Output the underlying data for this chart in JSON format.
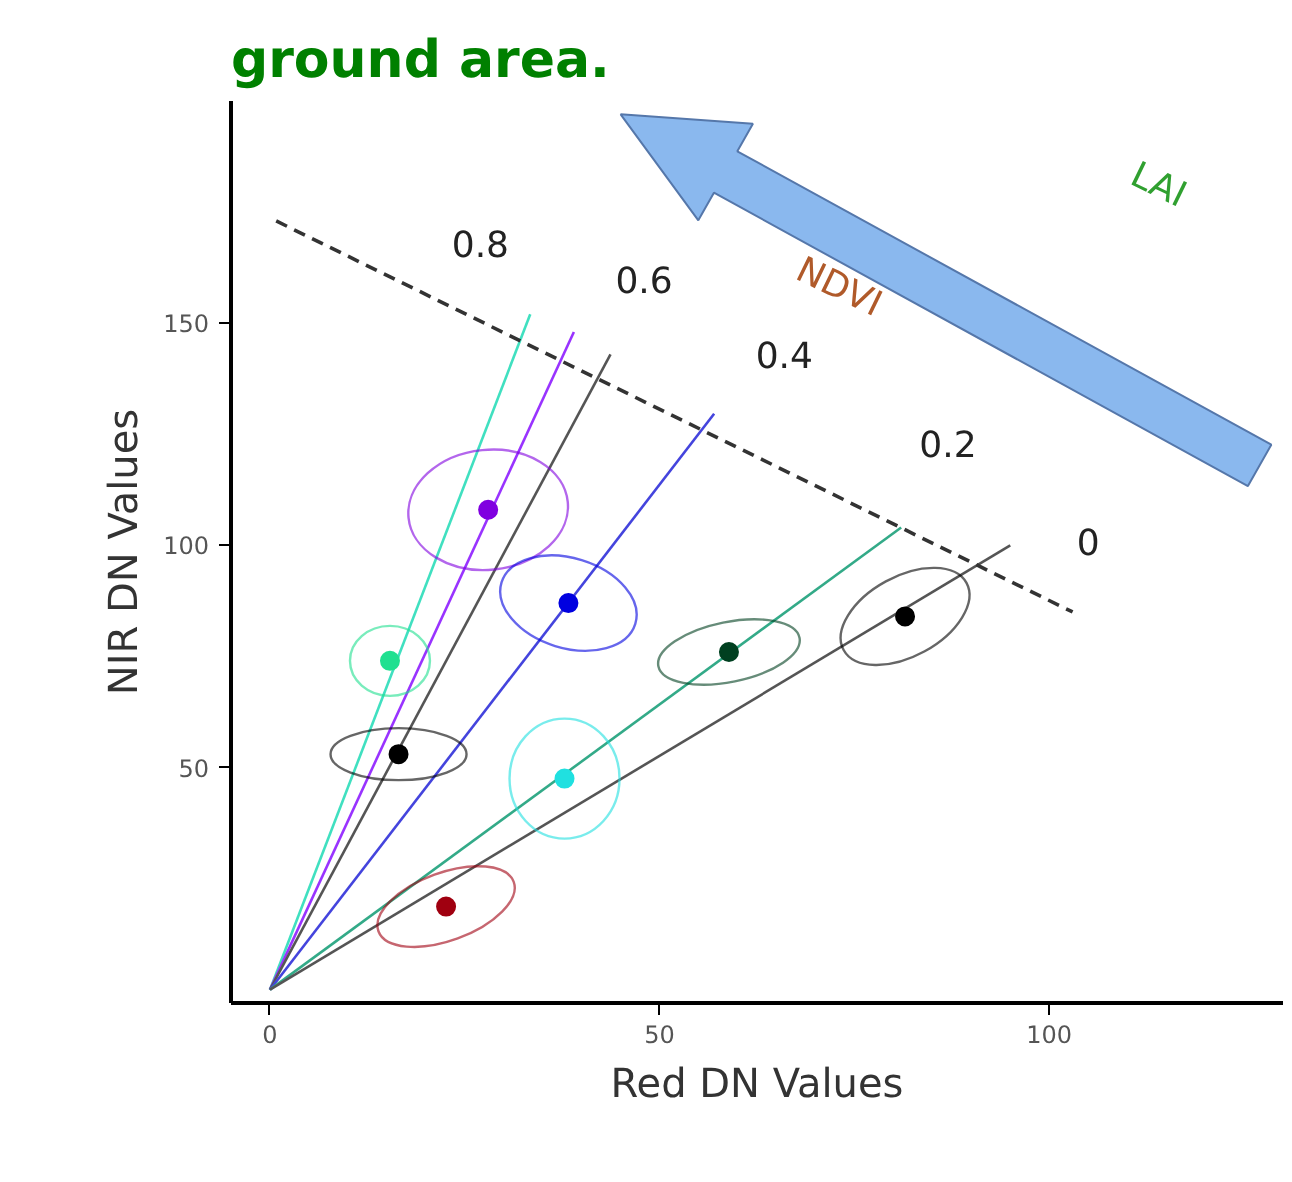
{
  "chart_data": {
    "type": "scatter",
    "title": "ground area.",
    "xlabel": "Red DN Values",
    "ylabel": "NIR DN Values",
    "xlim": [
      -5,
      130
    ],
    "ylim": [
      -3,
      200
    ],
    "xticks": [
      0,
      50,
      100
    ],
    "yticks": [
      50,
      100,
      150
    ],
    "grid": false,
    "series": [
      {
        "type": "line",
        "x": [
          0,
          33.4
        ],
        "values": [
          0,
          152
        ],
        "color": "#40e0c0"
      },
      {
        "type": "line",
        "x": [
          0,
          39
        ],
        "values": [
          0,
          148
        ],
        "color": "#9933ff"
      },
      {
        "type": "line",
        "x": [
          0,
          43.7
        ],
        "values": [
          0,
          143
        ],
        "color": "#555555"
      },
      {
        "type": "line",
        "x": [
          0,
          57
        ],
        "values": [
          0,
          129.6
        ],
        "color": "#4444dd"
      },
      {
        "type": "line",
        "x": [
          0,
          81
        ],
        "values": [
          0,
          104
        ],
        "color": "#33aa88"
      },
      {
        "type": "line",
        "x": [
          0,
          95
        ],
        "values": [
          0,
          100
        ],
        "color": "#555555"
      },
      {
        "type": "line",
        "x": [
          0.8,
          103
        ],
        "values": [
          173,
          85
        ],
        "color": "#333333",
        "line_style": "dashed"
      },
      {
        "marker": "circle",
        "x": [
          28,
          38.3,
          15.4,
          16.5,
          37.8,
          22.6,
          58.9,
          81.5
        ],
        "values": [
          108,
          87,
          74,
          53,
          47.5,
          18.7,
          76,
          84
        ],
        "colors": [
          "#8000e0",
          "#0000e0",
          "#20e090",
          "#000000",
          "#20e0e0",
          "#a00010",
          "#004020",
          "#000000"
        ]
      }
    ],
    "annotations": [
      "0.8",
      "0.6",
      "0.4",
      "0.2",
      "0",
      "NDVI",
      "LAI"
    ]
  }
}
